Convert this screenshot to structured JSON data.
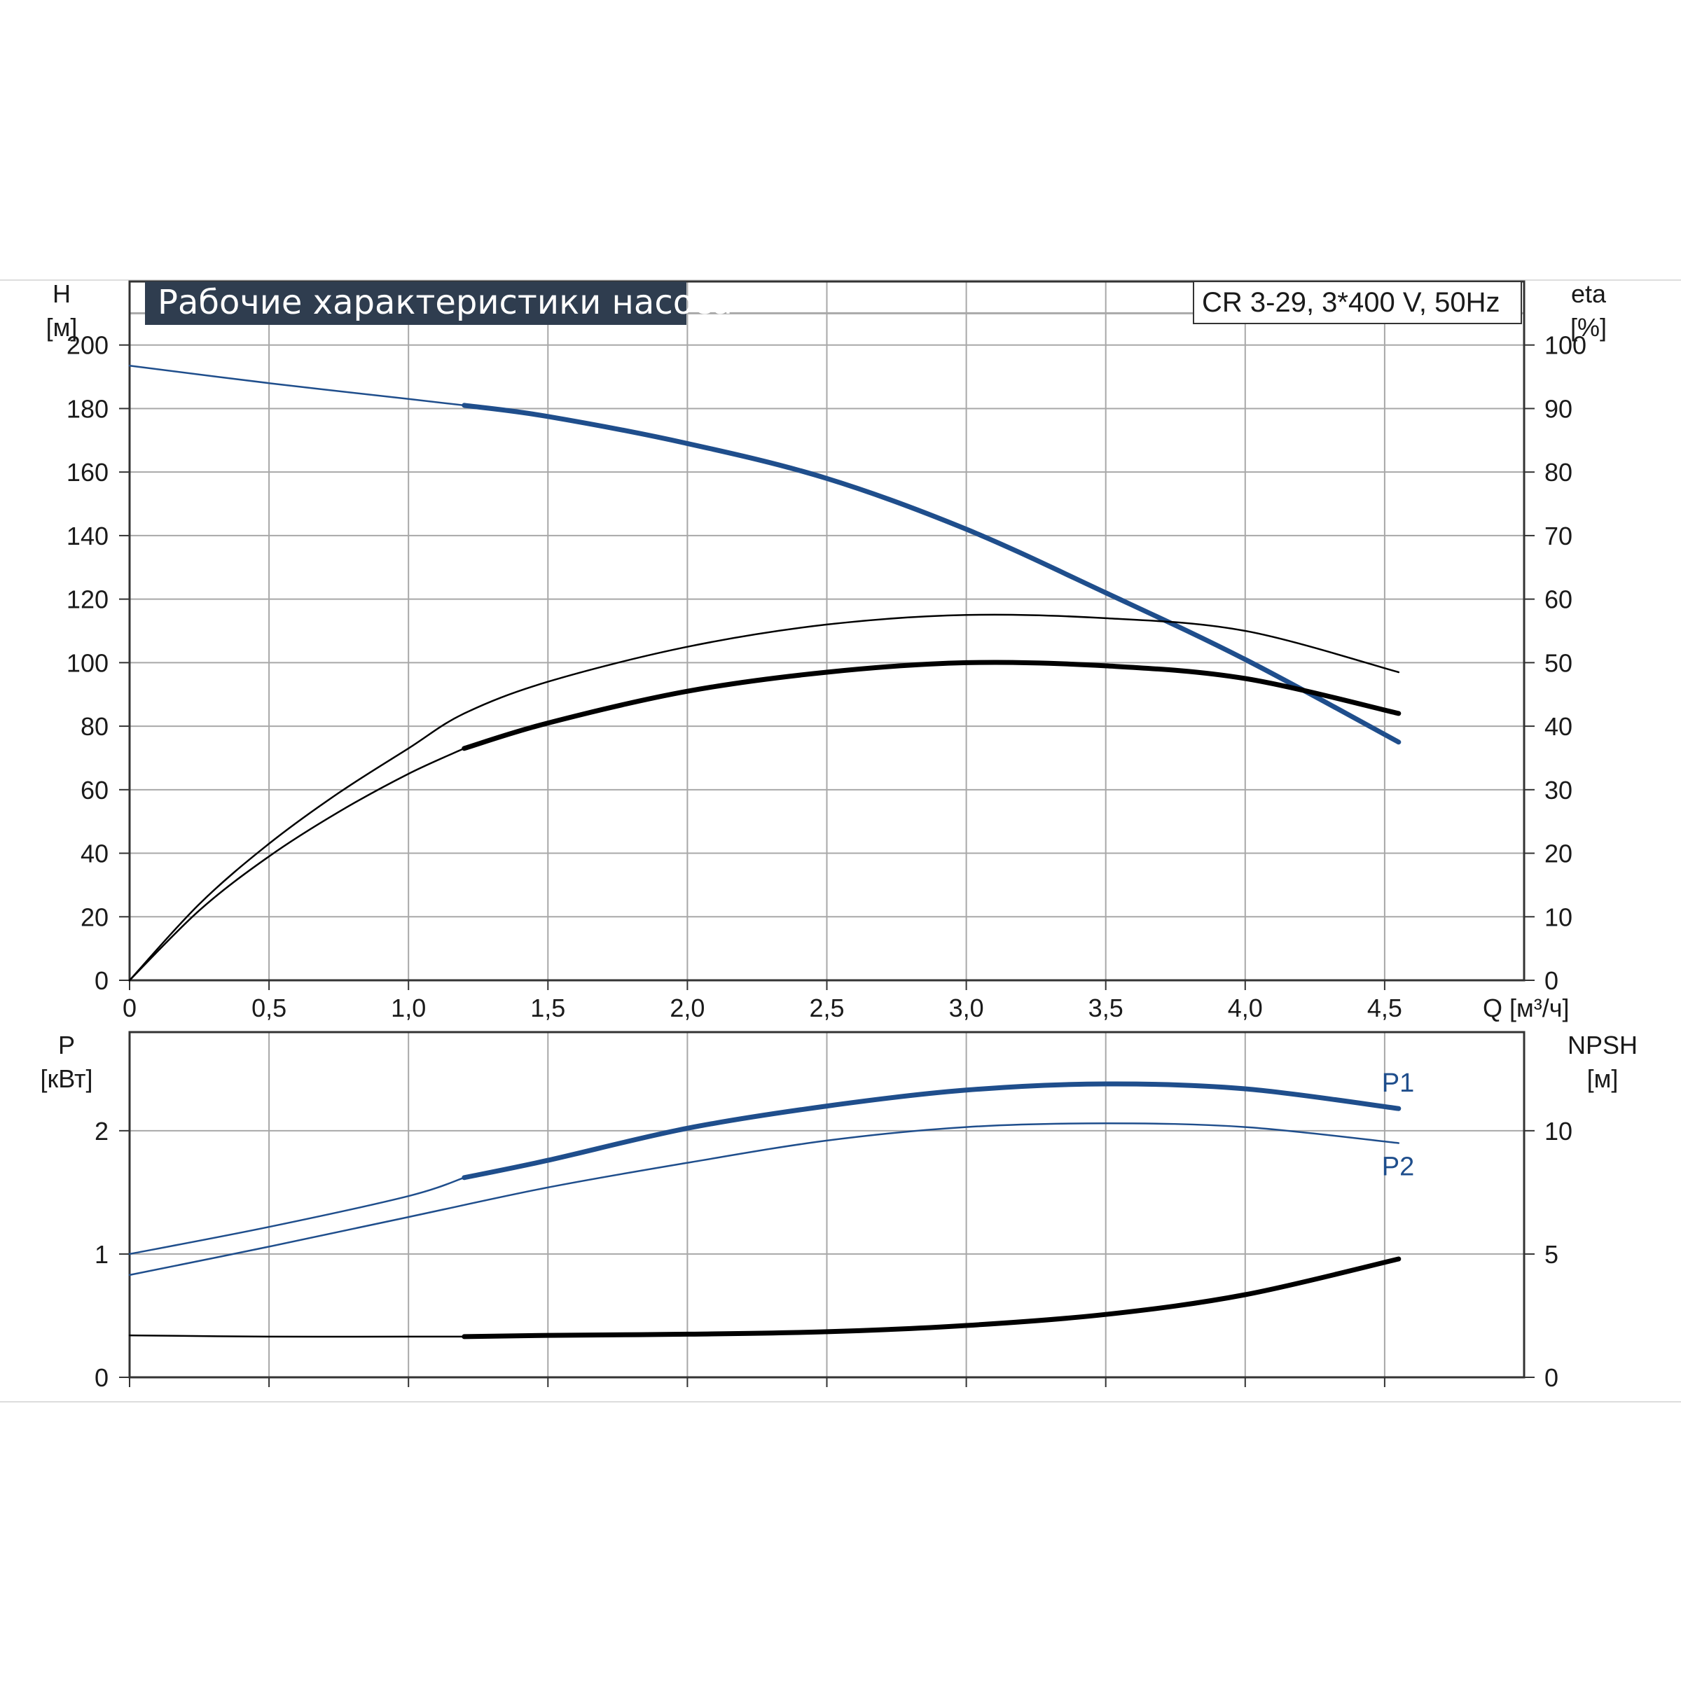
{
  "header": {
    "title": "Рабочие характеристики насоса",
    "model": "CR 3-29, 3*400 V, 50Hz"
  },
  "colors": {
    "blue": "#1f4e8c",
    "black": "#000000",
    "grid": "#a8a8a8",
    "title_bg": "#2f3d4f"
  },
  "chart_data": [
    {
      "type": "line",
      "name": "top",
      "x_axis": {
        "label": "Q [м³/ч]",
        "range": [
          0,
          5.0
        ],
        "ticks": [
          0,
          0.5,
          1.0,
          1.5,
          2.0,
          2.5,
          3.0,
          3.5,
          4.0,
          4.5
        ],
        "tick_labels": [
          "0",
          "0,5",
          "1,0",
          "1,5",
          "2,0",
          "2,5",
          "3,0",
          "3,5",
          "4,0",
          "4,5"
        ]
      },
      "y_left": {
        "label_line1": "H",
        "label_line2": "[м]",
        "range": [
          0,
          220
        ],
        "ticks": [
          0,
          20,
          40,
          60,
          80,
          100,
          120,
          140,
          160,
          180,
          200
        ]
      },
      "y_right": {
        "label_line1": "eta",
        "label_line2": "[%]",
        "range": [
          0,
          110
        ],
        "ticks": [
          0,
          10,
          20,
          30,
          40,
          50,
          60,
          70,
          80,
          90,
          100
        ]
      },
      "grid": true,
      "series": [
        {
          "axis": "left",
          "color": "blue",
          "x": [
            0,
            0.5,
            1.0,
            1.2
          ],
          "y": [
            193.5,
            188,
            183,
            181
          ],
          "style": "thin"
        },
        {
          "axis": "left",
          "color": "blue",
          "x": [
            1.2,
            1.5,
            2.0,
            2.5,
            3.0,
            3.5,
            4.0,
            4.55
          ],
          "y": [
            181,
            177.5,
            169,
            158,
            142,
            122,
            101,
            75
          ],
          "style": "thick"
        },
        {
          "axis": "right",
          "color": "black",
          "x": [
            0,
            0.25,
            0.5,
            0.75,
            1.0,
            1.2,
            1.5,
            2.0,
            2.5,
            3.0,
            3.5,
            4.0,
            4.55
          ],
          "y": [
            0,
            12,
            21.5,
            29.5,
            36.5,
            42,
            47,
            52.5,
            56,
            57.5,
            57,
            55,
            48.5
          ],
          "style": "thin"
        },
        {
          "axis": "right",
          "color": "black",
          "x": [
            0,
            0.25,
            0.5,
            0.75,
            1.0,
            1.2
          ],
          "y": [
            0,
            11,
            19.5,
            26.5,
            32.5,
            36.5
          ],
          "style": "thin"
        },
        {
          "axis": "right",
          "color": "black",
          "x": [
            1.2,
            1.5,
            2.0,
            2.5,
            3.0,
            3.5,
            4.0,
            4.55
          ],
          "y": [
            36.5,
            40.5,
            45.5,
            48.5,
            50,
            49.5,
            47.5,
            42
          ],
          "style": "thick"
        }
      ]
    },
    {
      "type": "line",
      "name": "bottom",
      "x_axis": {
        "range": [
          0,
          5.0
        ]
      },
      "y_left": {
        "label_line1": "P",
        "label_line2": "[кВт]",
        "range": [
          0,
          2.8
        ],
        "ticks": [
          0,
          1,
          2
        ]
      },
      "y_right": {
        "label_line1": "NPSH",
        "label_line2": "[м]",
        "range": [
          0,
          14
        ],
        "ticks": [
          0,
          5,
          10
        ]
      },
      "grid": true,
      "series": [
        {
          "name": "P1",
          "axis": "left",
          "color": "blue",
          "x": [
            0,
            0.5,
            1.0,
            1.2
          ],
          "y": [
            1.0,
            1.22,
            1.47,
            1.62
          ],
          "style": "thin"
        },
        {
          "name": "P1",
          "axis": "left",
          "color": "blue",
          "x": [
            1.2,
            1.5,
            2.0,
            2.5,
            3.0,
            3.5,
            4.0,
            4.55
          ],
          "y": [
            1.62,
            1.76,
            2.02,
            2.2,
            2.33,
            2.38,
            2.34,
            2.18
          ],
          "style": "thick",
          "label": "P1"
        },
        {
          "name": "P2",
          "axis": "left",
          "color": "blue",
          "x": [
            0,
            0.5,
            1.0,
            1.5,
            2.0,
            2.5,
            3.0,
            3.5,
            4.0,
            4.55
          ],
          "y": [
            0.83,
            1.06,
            1.3,
            1.54,
            1.74,
            1.92,
            2.03,
            2.06,
            2.03,
            1.9
          ],
          "style": "thin",
          "label": "P2"
        },
        {
          "axis": "right",
          "color": "black",
          "x": [
            0,
            0.5,
            1.0,
            1.2
          ],
          "y": [
            1.7,
            1.65,
            1.65,
            1.65
          ],
          "style": "thin"
        },
        {
          "axis": "right",
          "color": "black",
          "x": [
            1.2,
            1.5,
            2.0,
            2.5,
            3.0,
            3.5,
            4.0,
            4.55
          ],
          "y": [
            1.65,
            1.7,
            1.75,
            1.85,
            2.1,
            2.55,
            3.35,
            4.8
          ],
          "style": "thick"
        }
      ]
    }
  ]
}
